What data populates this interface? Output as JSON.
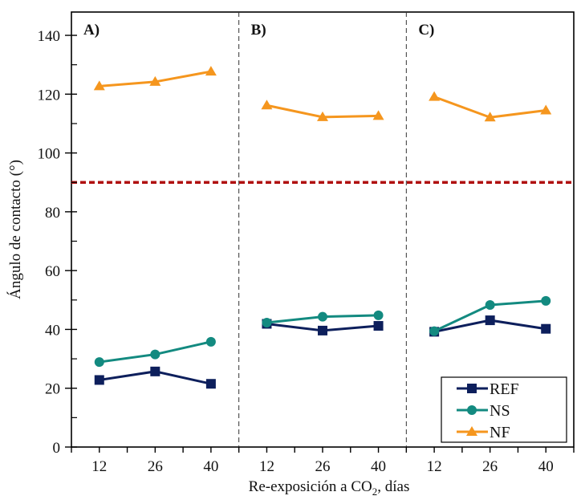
{
  "chart_data": {
    "type": "line",
    "title": "",
    "xlabel": "Re-exposición a CO",
    "xlabel_subscript": "2",
    "xlabel_suffix": ", días",
    "ylabel": "Ángulo de contacto (°)",
    "ylim": [
      0,
      145
    ],
    "yticks": [
      0,
      20,
      40,
      60,
      80,
      100,
      120,
      140
    ],
    "yminor_step": 10,
    "grid": false,
    "reference_line": {
      "value": 90,
      "color": "#b01010",
      "style": "dashed"
    },
    "panels": [
      {
        "label": "A)",
        "categories": [
          "12",
          "26",
          "40"
        ]
      },
      {
        "label": "B)",
        "categories": [
          "12",
          "26",
          "40"
        ]
      },
      {
        "label": "C)",
        "categories": [
          "12",
          "26",
          "40"
        ]
      }
    ],
    "series": [
      {
        "name": "REF",
        "color": "#0d1f5c",
        "marker": "square",
        "values": [
          [
            22.8,
            25.7,
            21.5
          ],
          [
            41.9,
            39.6,
            41.2
          ],
          [
            39.2,
            43.1,
            40.2
          ]
        ]
      },
      {
        "name": "NS",
        "color": "#138a80",
        "marker": "circle",
        "values": [
          [
            28.9,
            31.5,
            35.8
          ],
          [
            42.3,
            44.3,
            44.8
          ],
          [
            39.4,
            48.3,
            49.7
          ]
        ]
      },
      {
        "name": "NF",
        "color": "#f5961e",
        "marker": "triangle",
        "values": [
          [
            122.7,
            124.2,
            127.7
          ],
          [
            116.2,
            112.2,
            112.6
          ],
          [
            119.1,
            112.1,
            114.5
          ]
        ]
      }
    ],
    "legend": {
      "position": "bottom-right",
      "entries": [
        "REF",
        "NS",
        "NF"
      ]
    }
  }
}
